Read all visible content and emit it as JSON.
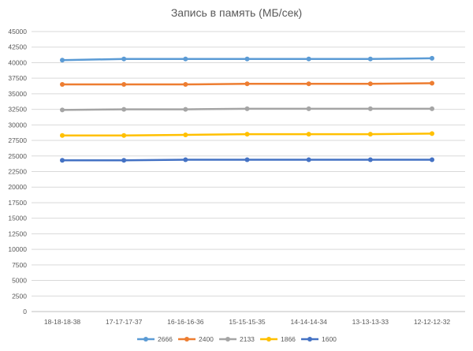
{
  "chart_data": {
    "type": "line",
    "title": "Запись в память (МБ/сек)",
    "xlabel": "",
    "ylabel": "",
    "categories": [
      "18-18-18-38",
      "17-17-17-37",
      "16-16-16-36",
      "15-15-15-35",
      "14-14-14-34",
      "13-13-13-33",
      "12-12-12-32"
    ],
    "ylim": [
      0,
      45000
    ],
    "ytick_step": 2500,
    "grid": true,
    "legend": "bottom",
    "series": [
      {
        "name": "2666",
        "color": "#5B9BD5",
        "values": [
          40400,
          40600,
          40600,
          40600,
          40600,
          40600,
          40700
        ]
      },
      {
        "name": "2400",
        "color": "#ED7D31",
        "values": [
          36500,
          36500,
          36500,
          36600,
          36600,
          36600,
          36700
        ]
      },
      {
        "name": "2133",
        "color": "#A5A5A5",
        "values": [
          32400,
          32500,
          32500,
          32600,
          32600,
          32600,
          32600
        ]
      },
      {
        "name": "1866",
        "color": "#FFC000",
        "values": [
          28300,
          28300,
          28400,
          28500,
          28500,
          28500,
          28600
        ]
      },
      {
        "name": "1600",
        "color": "#4472C4",
        "values": [
          24300,
          24300,
          24400,
          24400,
          24400,
          24400,
          24400
        ]
      }
    ]
  }
}
